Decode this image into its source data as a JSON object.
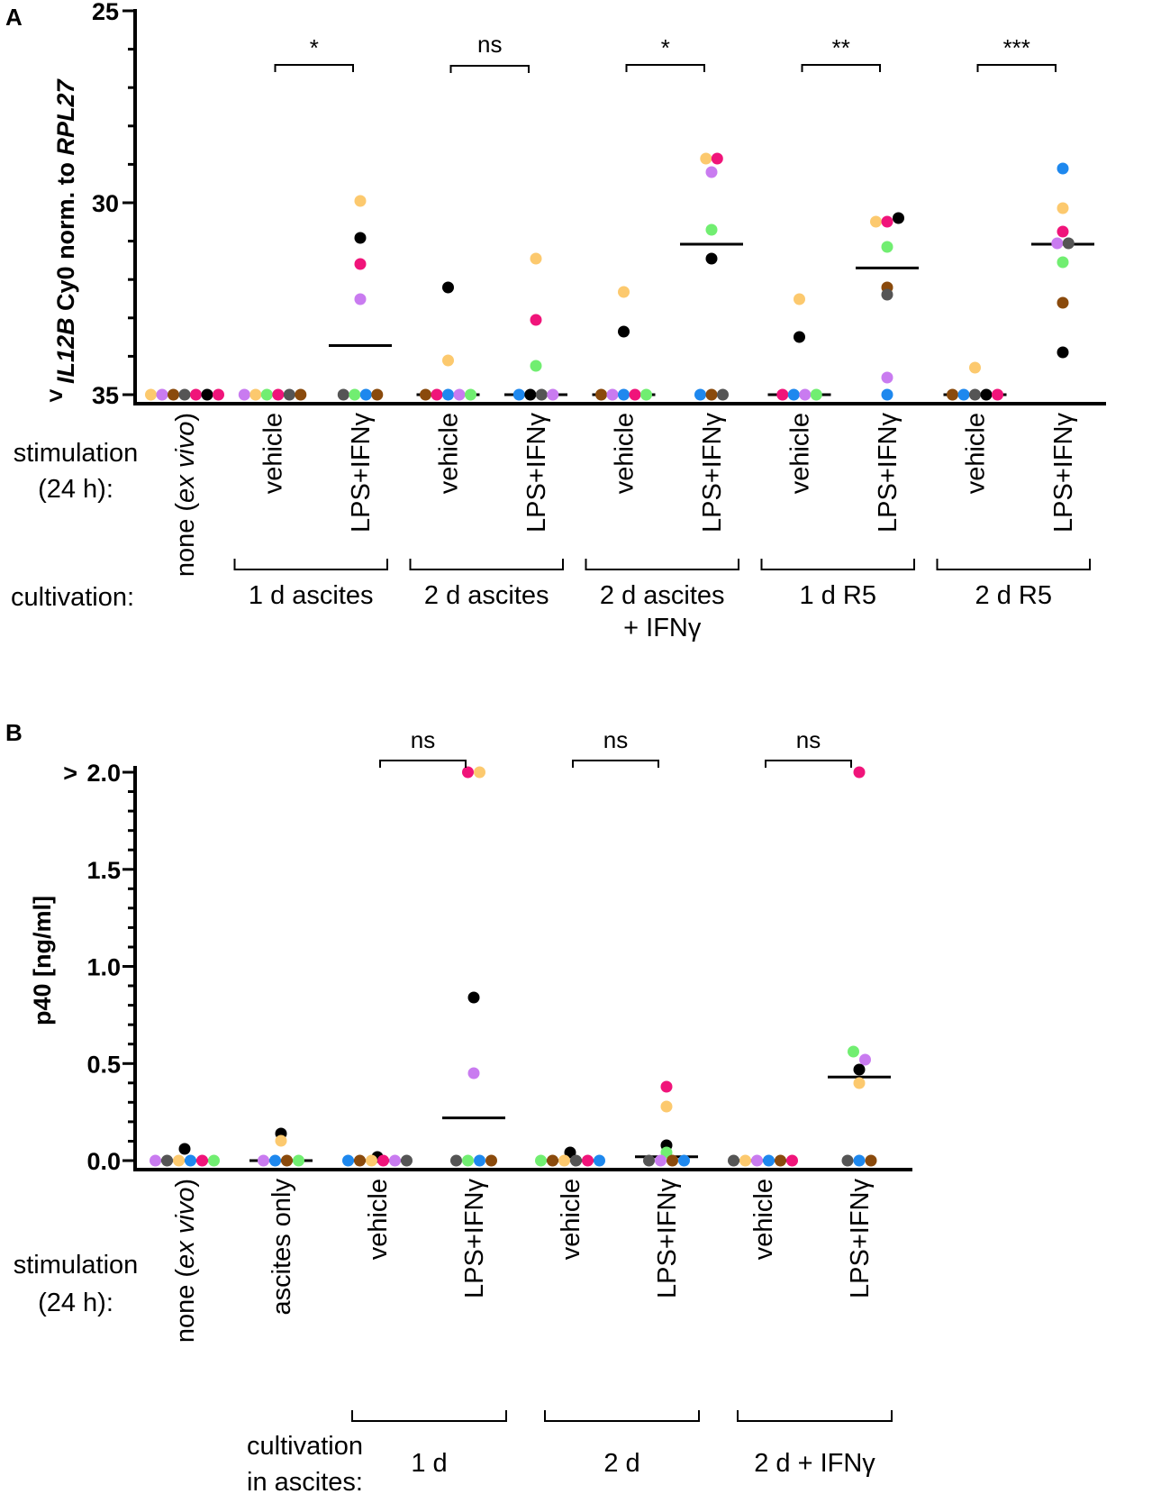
{
  "colors": {
    "black": "#000000",
    "orange": "#fcc96e",
    "pink": "#f0147a",
    "purple": "#c97bf0",
    "green": "#71ee71",
    "blue": "#1e88ee",
    "brown": "#8a4a0c",
    "gray": "#555555"
  },
  "chart_data": [
    {
      "panel": "A",
      "type": "scatter",
      "ylabel_gene": "IL12B",
      "ylabel_mid": " Cy0 norm. to ",
      "ylabel_ref": "RPL27",
      "y_inverted": true,
      "ylim": [
        35,
        25
      ],
      "yticks": [
        "25",
        "30",
        "35"
      ],
      "ytick_prefix_35": ">",
      "row_label_stimulation": [
        "stimulation",
        "(24 h):"
      ],
      "row_label_cultivation": "cultivation:",
      "categories": [
        {
          "pre": "none (",
          "ital": "ex vivo",
          "post": ")"
        },
        {
          "pre": "vehicle",
          "ital": "",
          "post": ""
        },
        {
          "pre": "LPS+IFNγ",
          "ital": "",
          "post": ""
        },
        {
          "pre": "vehicle",
          "ital": "",
          "post": ""
        },
        {
          "pre": "LPS+IFNγ",
          "ital": "",
          "post": ""
        },
        {
          "pre": "vehicle",
          "ital": "",
          "post": ""
        },
        {
          "pre": "LPS+IFNγ",
          "ital": "",
          "post": ""
        },
        {
          "pre": "vehicle",
          "ital": "",
          "post": ""
        },
        {
          "pre": "LPS+IFNγ",
          "ital": "",
          "post": ""
        },
        {
          "pre": "vehicle",
          "ital": "",
          "post": ""
        },
        {
          "pre": "LPS+IFNγ",
          "ital": "",
          "post": ""
        }
      ],
      "groups": [
        {
          "lines": [
            "1 d ascites"
          ],
          "from": 1,
          "to": 2
        },
        {
          "lines": [
            "2 d ascites"
          ],
          "from": 3,
          "to": 4
        },
        {
          "lines": [
            "2 d ascites",
            "+ IFNγ"
          ],
          "from": 5,
          "to": 6
        },
        {
          "lines": [
            "1 d R5"
          ],
          "from": 7,
          "to": 8
        },
        {
          "lines": [
            "2 d R5"
          ],
          "from": 9,
          "to": 10
        }
      ],
      "significance": [
        {
          "from": 1,
          "to": 2,
          "label": "*"
        },
        {
          "from": 3,
          "to": 4,
          "label": "ns"
        },
        {
          "from": 5,
          "to": 6,
          "label": "*"
        },
        {
          "from": 7,
          "to": 8,
          "label": "**"
        },
        {
          "from": 9,
          "to": 10,
          "label": "***"
        }
      ],
      "series": [
        {
          "category": 0,
          "mean": 35,
          "points": [
            {
              "c": "orange",
              "v": 35
            },
            {
              "c": "purple",
              "v": 35
            },
            {
              "c": "brown",
              "v": 35
            },
            {
              "c": "gray",
              "v": 35
            },
            {
              "c": "pink",
              "v": 35
            },
            {
              "c": "black",
              "v": 35
            },
            {
              "c": "pink",
              "v": 35
            }
          ]
        },
        {
          "category": 1,
          "mean": 35,
          "points": [
            {
              "c": "purple",
              "v": 35
            },
            {
              "c": "orange",
              "v": 35
            },
            {
              "c": "green",
              "v": 35
            },
            {
              "c": "pink",
              "v": 35
            },
            {
              "c": "gray",
              "v": 35
            },
            {
              "c": "brown",
              "v": 35
            }
          ]
        },
        {
          "category": 2,
          "mean": 33.72,
          "points": [
            {
              "c": "orange",
              "v": 29.95
            },
            {
              "c": "black",
              "v": 30.92
            },
            {
              "c": "pink",
              "v": 31.6
            },
            {
              "c": "purple",
              "v": 32.5
            },
            {
              "c": "gray",
              "v": 35
            },
            {
              "c": "green",
              "v": 35
            },
            {
              "c": "blue",
              "v": 35
            },
            {
              "c": "brown",
              "v": 35
            }
          ]
        },
        {
          "category": 3,
          "mean": 35,
          "points": [
            {
              "c": "black",
              "v": 32.2
            },
            {
              "c": "orange",
              "v": 34.1
            },
            {
              "c": "brown",
              "v": 35
            },
            {
              "c": "pink",
              "v": 35
            },
            {
              "c": "blue",
              "v": 35
            },
            {
              "c": "purple",
              "v": 35
            },
            {
              "c": "green",
              "v": 35
            }
          ]
        },
        {
          "category": 4,
          "mean": 35,
          "points": [
            {
              "c": "orange",
              "v": 31.45
            },
            {
              "c": "pink",
              "v": 33.05
            },
            {
              "c": "green",
              "v": 34.25
            },
            {
              "c": "blue",
              "v": 35
            },
            {
              "c": "black",
              "v": 35
            },
            {
              "c": "gray",
              "v": 35
            },
            {
              "c": "purple",
              "v": 35
            }
          ]
        },
        {
          "category": 5,
          "mean": 35,
          "points": [
            {
              "c": "orange",
              "v": 32.32
            },
            {
              "c": "black",
              "v": 33.35
            },
            {
              "c": "brown",
              "v": 35
            },
            {
              "c": "purple",
              "v": 35
            },
            {
              "c": "blue",
              "v": 35
            },
            {
              "c": "pink",
              "v": 35
            },
            {
              "c": "green",
              "v": 35
            }
          ]
        },
        {
          "category": 6,
          "mean": 31.08,
          "points": [
            {
              "c": "orange",
              "v": 28.85
            },
            {
              "c": "pink",
              "v": 28.85
            },
            {
              "c": "purple",
              "v": 29.2
            },
            {
              "c": "green",
              "v": 30.7
            },
            {
              "c": "black",
              "v": 31.45
            },
            {
              "c": "blue",
              "v": 35
            },
            {
              "c": "brown",
              "v": 35
            },
            {
              "c": "gray",
              "v": 35
            }
          ]
        },
        {
          "category": 7,
          "mean": 35,
          "points": [
            {
              "c": "orange",
              "v": 32.5
            },
            {
              "c": "black",
              "v": 33.5
            },
            {
              "c": "pink",
              "v": 35
            },
            {
              "c": "blue",
              "v": 35
            },
            {
              "c": "purple",
              "v": 35
            },
            {
              "c": "green",
              "v": 35
            }
          ]
        },
        {
          "category": 8,
          "mean": 31.7,
          "points": [
            {
              "c": "orange",
              "v": 30.5
            },
            {
              "c": "pink",
              "v": 30.5
            },
            {
              "c": "black",
              "v": 30.4
            },
            {
              "c": "green",
              "v": 31.15
            },
            {
              "c": "brown",
              "v": 32.2
            },
            {
              "c": "gray",
              "v": 32.4
            },
            {
              "c": "purple",
              "v": 34.55
            },
            {
              "c": "blue",
              "v": 35
            }
          ]
        },
        {
          "category": 9,
          "mean": 35,
          "points": [
            {
              "c": "orange",
              "v": 34.3
            },
            {
              "c": "brown",
              "v": 35
            },
            {
              "c": "blue",
              "v": 35
            },
            {
              "c": "gray",
              "v": 35
            },
            {
              "c": "black",
              "v": 35
            },
            {
              "c": "pink",
              "v": 35
            }
          ]
        },
        {
          "category": 10,
          "mean": 31.08,
          "points": [
            {
              "c": "blue",
              "v": 29.1
            },
            {
              "c": "orange",
              "v": 30.15
            },
            {
              "c": "pink",
              "v": 30.75
            },
            {
              "c": "purple",
              "v": 31.05
            },
            {
              "c": "gray",
              "v": 31.05
            },
            {
              "c": "green",
              "v": 31.55
            },
            {
              "c": "brown",
              "v": 32.6
            },
            {
              "c": "black",
              "v": 33.9
            }
          ]
        }
      ]
    },
    {
      "panel": "B",
      "type": "scatter",
      "ylabel": "p40 [ng/ml]",
      "ylim": [
        0,
        2.0
      ],
      "yticks": [
        "0.0",
        "0.5",
        "1.0",
        "1.5",
        "2.0"
      ],
      "ytick_prefix_top": ">",
      "row_label_stimulation": [
        "stimulation",
        "(24 h):"
      ],
      "row_label_cultivation": [
        "cultivation",
        "in ascites:"
      ],
      "categories": [
        {
          "pre": "none (",
          "ital": "ex vivo",
          "post": ")"
        },
        {
          "pre": "ascites only",
          "ital": "",
          "post": ""
        },
        {
          "pre": "vehicle",
          "ital": "",
          "post": ""
        },
        {
          "pre": "LPS+IFNγ",
          "ital": "",
          "post": ""
        },
        {
          "pre": "vehicle",
          "ital": "",
          "post": ""
        },
        {
          "pre": "LPS+IFNγ",
          "ital": "",
          "post": ""
        },
        {
          "pre": "vehicle",
          "ital": "",
          "post": ""
        },
        {
          "pre": "LPS+IFNγ",
          "ital": "",
          "post": ""
        }
      ],
      "groups": [
        {
          "lines": [
            "1 d"
          ],
          "from": 2,
          "to": 3
        },
        {
          "lines": [
            "2 d"
          ],
          "from": 4,
          "to": 5
        },
        {
          "lines": [
            "2 d + IFNγ"
          ],
          "from": 6,
          "to": 7
        }
      ],
      "significance": [
        {
          "from": 2,
          "to": 3,
          "label": "ns"
        },
        {
          "from": 4,
          "to": 5,
          "label": "ns"
        },
        {
          "from": 6,
          "to": 7,
          "label": "ns"
        }
      ],
      "series": [
        {
          "category": 0,
          "mean": 0,
          "points": [
            {
              "c": "black",
              "v": 0.06
            },
            {
              "c": "purple",
              "v": 0
            },
            {
              "c": "gray",
              "v": 0
            },
            {
              "c": "orange",
              "v": 0
            },
            {
              "c": "blue",
              "v": 0
            },
            {
              "c": "pink",
              "v": 0
            },
            {
              "c": "green",
              "v": 0
            }
          ]
        },
        {
          "category": 1,
          "mean": 0,
          "points": [
            {
              "c": "purple",
              "v": 0
            },
            {
              "c": "black",
              "v": 0.14
            },
            {
              "c": "blue",
              "v": 0
            },
            {
              "c": "orange",
              "v": 0.1
            },
            {
              "c": "brown",
              "v": 0
            },
            {
              "c": "green",
              "v": 0
            }
          ]
        },
        {
          "category": 2,
          "mean": 0,
          "points": [
            {
              "c": "blue",
              "v": 0
            },
            {
              "c": "brown",
              "v": 0
            },
            {
              "c": "black",
              "v": 0.02
            },
            {
              "c": "orange",
              "v": 0
            },
            {
              "c": "pink",
              "v": 0
            },
            {
              "c": "purple",
              "v": 0
            },
            {
              "c": "gray",
              "v": 0
            }
          ]
        },
        {
          "category": 3,
          "mean": 0.22,
          "points": [
            {
              "c": "pink",
              "v": 2.0
            },
            {
              "c": "orange",
              "v": 2.0
            },
            {
              "c": "black",
              "v": 0.84
            },
            {
              "c": "purple",
              "v": 0.45
            },
            {
              "c": "gray",
              "v": 0
            },
            {
              "c": "green",
              "v": 0
            },
            {
              "c": "blue",
              "v": 0
            },
            {
              "c": "brown",
              "v": 0
            }
          ]
        },
        {
          "category": 4,
          "mean": 0,
          "points": [
            {
              "c": "green",
              "v": 0
            },
            {
              "c": "brown",
              "v": 0
            },
            {
              "c": "black",
              "v": 0.04
            },
            {
              "c": "orange",
              "v": 0
            },
            {
              "c": "gray",
              "v": 0
            },
            {
              "c": "pink",
              "v": 0
            },
            {
              "c": "blue",
              "v": 0
            }
          ]
        },
        {
          "category": 5,
          "mean": 0.02,
          "points": [
            {
              "c": "pink",
              "v": 0.38
            },
            {
              "c": "orange",
              "v": 0.28
            },
            {
              "c": "black",
              "v": 0.08
            },
            {
              "c": "green",
              "v": 0.04
            },
            {
              "c": "gray",
              "v": 0
            },
            {
              "c": "purple",
              "v": 0
            },
            {
              "c": "brown",
              "v": 0
            },
            {
              "c": "blue",
              "v": 0
            }
          ]
        },
        {
          "category": 6,
          "mean": 0,
          "points": [
            {
              "c": "gray",
              "v": 0
            },
            {
              "c": "orange",
              "v": 0
            },
            {
              "c": "purple",
              "v": 0
            },
            {
              "c": "blue",
              "v": 0
            },
            {
              "c": "brown",
              "v": 0
            },
            {
              "c": "pink",
              "v": 0
            }
          ]
        },
        {
          "category": 7,
          "mean": 0.43,
          "points": [
            {
              "c": "pink",
              "v": 2.0
            },
            {
              "c": "green",
              "v": 0.56
            },
            {
              "c": "purple",
              "v": 0.52
            },
            {
              "c": "black",
              "v": 0.47
            },
            {
              "c": "orange",
              "v": 0.4
            },
            {
              "c": "gray",
              "v": 0
            },
            {
              "c": "blue",
              "v": 0
            },
            {
              "c": "brown",
              "v": 0
            }
          ]
        }
      ]
    }
  ]
}
